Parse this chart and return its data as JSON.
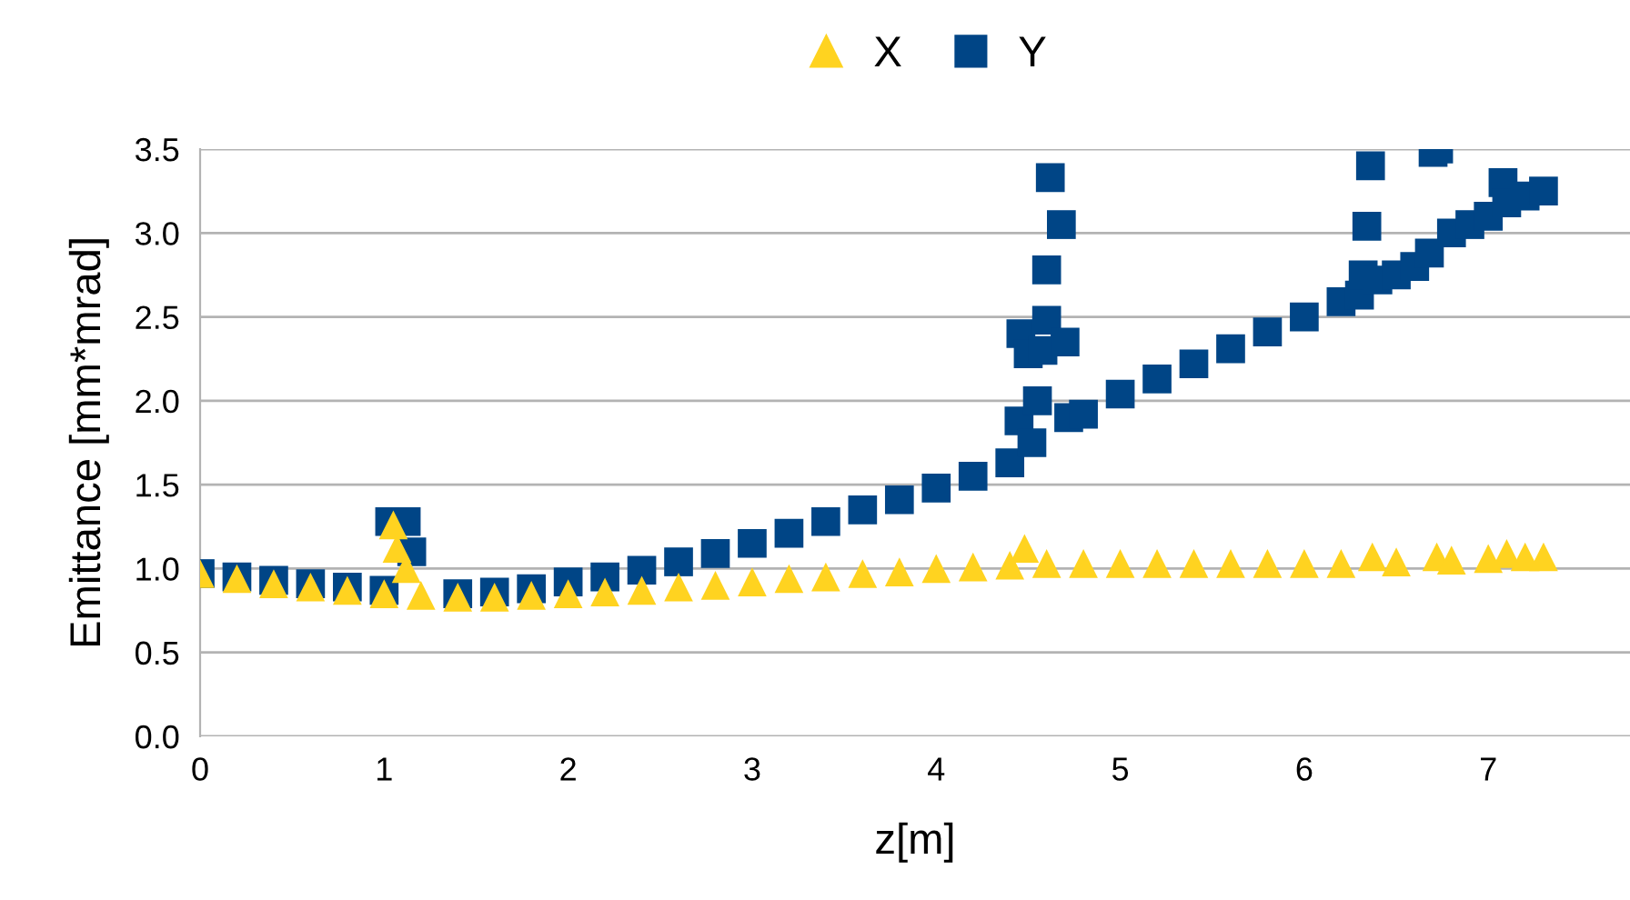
{
  "chart_data": {
    "type": "scatter",
    "xlabel": "z[m]",
    "ylabel": "Emittance [mm*mrad]",
    "legend": "top",
    "grid": "y",
    "xlim": [
      0,
      7.77
    ],
    "xticks": [
      0,
      1,
      2,
      3,
      4,
      5,
      6,
      7
    ],
    "ylim": [
      0,
      3.5
    ],
    "yticks": [
      {
        "value": 0,
        "label": "0.0"
      },
      {
        "value": 0.5,
        "label": "0.5"
      },
      {
        "value": 1,
        "label": "1.0"
      },
      {
        "value": 1.5,
        "label": "1.5"
      },
      {
        "value": 2,
        "label": "2.0"
      },
      {
        "value": 2.5,
        "label": "2.5"
      },
      {
        "value": 3,
        "label": "3.0"
      },
      {
        "value": 3.5,
        "label": "3.5"
      }
    ],
    "series": [
      {
        "name": "X",
        "color": "#ffd320",
        "marker": "triangle",
        "x": [
          0,
          0.2,
          0.4,
          0.6,
          0.8,
          1.0,
          1.05,
          1.07,
          1.12,
          1.2,
          1.4,
          1.6,
          1.8,
          2.0,
          2.2,
          2.4,
          2.6,
          2.8,
          3.0,
          3.2,
          3.4,
          3.6,
          3.8,
          4.0,
          4.2,
          4.4,
          4.48,
          4.6,
          4.8,
          5.0,
          5.2,
          5.4,
          5.6,
          5.8,
          6.0,
          6.2,
          6.37,
          6.5,
          6.72,
          6.8,
          7.0,
          7.1,
          7.2,
          7.3
        ],
        "values": [
          0.97,
          0.94,
          0.91,
          0.89,
          0.87,
          0.85,
          1.26,
          1.12,
          1.0,
          0.84,
          0.83,
          0.83,
          0.84,
          0.85,
          0.86,
          0.87,
          0.89,
          0.9,
          0.92,
          0.94,
          0.95,
          0.97,
          0.98,
          1.0,
          1.01,
          1.02,
          1.12,
          1.03,
          1.03,
          1.03,
          1.03,
          1.03,
          1.03,
          1.03,
          1.03,
          1.03,
          1.07,
          1.04,
          1.07,
          1.05,
          1.06,
          1.09,
          1.07,
          1.07
        ]
      },
      {
        "name": "Y",
        "color": "#004586",
        "marker": "square",
        "x": [
          0,
          0.2,
          0.4,
          0.6,
          0.8,
          1.0,
          1.03,
          1.12,
          1.15,
          1.4,
          1.6,
          1.8,
          2.0,
          2.2,
          2.4,
          2.6,
          2.8,
          3.0,
          3.2,
          3.4,
          3.6,
          3.8,
          4.0,
          4.2,
          4.4,
          4.45,
          4.46,
          4.5,
          4.52,
          4.55,
          4.58,
          4.6,
          4.6,
          4.62,
          4.68,
          4.7,
          4.72,
          4.8,
          5.0,
          5.2,
          5.4,
          5.6,
          5.8,
          6.0,
          6.2,
          6.3,
          6.32,
          6.34,
          6.36,
          6.4,
          6.5,
          6.6,
          6.68,
          6.7,
          6.73,
          6.8,
          6.9,
          7.0,
          7.08,
          7.1,
          7.2,
          7.3
        ],
        "values": [
          0.97,
          0.95,
          0.93,
          0.91,
          0.89,
          0.87,
          1.28,
          1.28,
          1.1,
          0.85,
          0.86,
          0.88,
          0.92,
          0.95,
          0.99,
          1.04,
          1.09,
          1.15,
          1.21,
          1.28,
          1.35,
          1.41,
          1.48,
          1.55,
          1.63,
          1.88,
          2.4,
          2.28,
          1.75,
          2.0,
          2.3,
          2.48,
          2.78,
          3.33,
          3.05,
          2.35,
          1.9,
          1.92,
          2.04,
          2.13,
          2.22,
          2.31,
          2.41,
          2.5,
          2.59,
          2.63,
          2.75,
          3.04,
          3.4,
          2.72,
          2.75,
          2.8,
          2.88,
          3.48,
          3.5,
          3.0,
          3.05,
          3.1,
          3.3,
          3.18,
          3.22,
          3.25
        ]
      }
    ]
  }
}
